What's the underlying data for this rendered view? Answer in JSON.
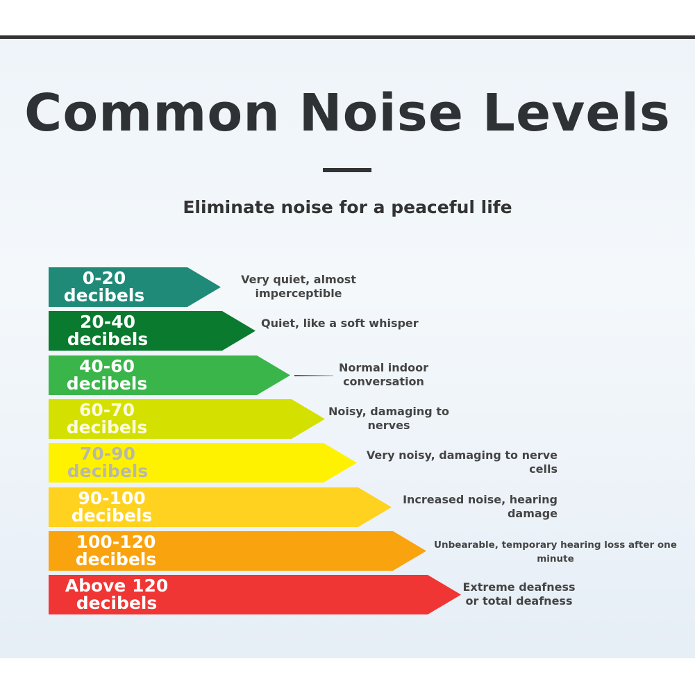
{
  "header": {
    "title": "Common Noise Levels",
    "subtitle": "Eliminate noise for a peaceful life"
  },
  "levels": [
    {
      "range": "0-20",
      "unit": "decibels",
      "description": "Very quiet, almost imperceptible"
    },
    {
      "range": "20-40",
      "unit": "decibels",
      "description": "Quiet, like a soft whisper"
    },
    {
      "range": "40-60",
      "unit": "decibels",
      "description": "Normal indoor conversation"
    },
    {
      "range": "60-70",
      "unit": "decibels",
      "description": "Noisy, damaging to nerves"
    },
    {
      "range": "70-90",
      "unit": "decibels",
      "description": "Very noisy, damaging to nerve cells"
    },
    {
      "range": "90-100",
      "unit": "decibels",
      "description": "Increased noise, hearing damage"
    },
    {
      "range": "100-120",
      "unit": "decibels",
      "description": "Unbearable, temporary hearing loss after one minute"
    },
    {
      "range": "Above 120",
      "unit": "decibels",
      "description": "Extreme deafness or total deafness"
    }
  ]
}
